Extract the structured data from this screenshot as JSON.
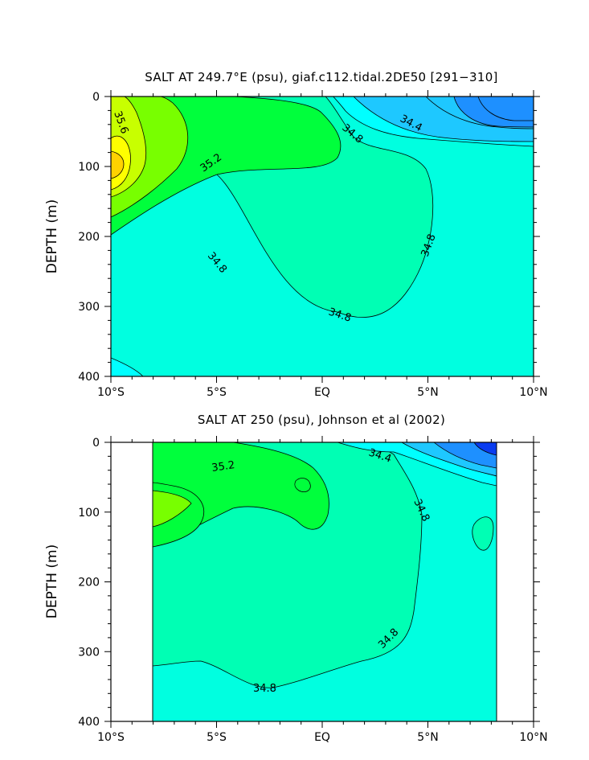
{
  "chart_data": [
    {
      "type": "contour",
      "title": "SALT AT 249.7°E (psu), giaf.c112.tidal.2DE50 [291−310]",
      "ylabel": "DEPTH (m)",
      "ylim": [
        0,
        400
      ],
      "y_inverted": true,
      "xlim": [
        -10,
        10
      ],
      "x_tick_labels": [
        "10°S",
        "5°S",
        "EQ",
        "5°N",
        "10°N"
      ],
      "y_tick_labels": [
        "0",
        "100",
        "200",
        "300",
        "400"
      ],
      "contour_labels": [
        "35.6",
        "35.2",
        "34.8",
        "34.4",
        "34.8",
        "34.8",
        "34.8"
      ],
      "fill_colors": [
        "#0a3cf0",
        "#1e90ff",
        "#1ec8ff",
        "#00ffff",
        "#00ffe0",
        "#00ffb4",
        "#00ff3c",
        "#78ff00",
        "#c8ff00",
        "#ffff00",
        "#ffd200"
      ],
      "data_extent_x": [
        -10,
        10
      ],
      "data_extent_y": [
        0,
        400
      ]
    },
    {
      "type": "contour",
      "title": "SALT AT 250 (psu), Johnson et al (2002)",
      "ylabel": "DEPTH (m)",
      "ylim": [
        0,
        400
      ],
      "y_inverted": true,
      "xlim": [
        -10,
        10
      ],
      "x_tick_labels": [
        "10°S",
        "5°S",
        "EQ",
        "5°N",
        "10°N"
      ],
      "y_tick_labels": [
        "0",
        "100",
        "200",
        "300",
        "400"
      ],
      "contour_labels": [
        "35.2",
        "34.4",
        "34.8",
        "34.8",
        "34.8"
      ],
      "fill_colors": [
        "#0a3cf0",
        "#1e90ff",
        "#1ec8ff",
        "#00ffff",
        "#00ffe0",
        "#00ffb4",
        "#00ff3c",
        "#78ff00"
      ],
      "data_extent_x": [
        -8,
        8
      ],
      "data_extent_y": [
        5,
        400
      ]
    }
  ]
}
